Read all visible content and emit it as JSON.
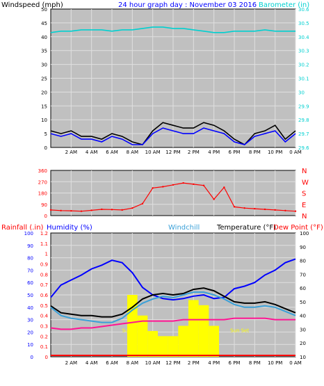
{
  "chart_data": [
    {
      "type": "line",
      "title": "24 hour graph day : November 03 2016",
      "ylabel": "Windspeed (mph)",
      "ylabel_right": "Barometer (in)",
      "x_ticks": [
        "2 AM",
        "4 AM",
        "6 AM",
        "8 AM",
        "10 AM",
        "12 PM",
        "2 PM",
        "4 PM",
        "6 PM",
        "8 PM",
        "10 PM",
        "0 AM"
      ],
      "ylim": [
        0,
        50
      ],
      "y_ticks": [
        "0",
        "5",
        "10",
        "15",
        "20",
        "25",
        "30",
        "35",
        "40",
        "45",
        "50"
      ],
      "ylim_right": [
        29.6,
        30.6
      ],
      "y_ticks_right": [
        "29.6",
        "29.7",
        "29.8",
        "29.9",
        "30",
        "30.1",
        "30.2",
        "30.3",
        "30.4",
        "30.5",
        "30.6"
      ],
      "grid": true,
      "series": [
        {
          "name": "Windspeed (mph)",
          "color": "#000000",
          "x": [
            0,
            1,
            2,
            3,
            4,
            5,
            6,
            7,
            8,
            9,
            10,
            11,
            12,
            13,
            14,
            15,
            16,
            17,
            18,
            19,
            20,
            21,
            22,
            23,
            24
          ],
          "values": [
            6,
            5,
            6,
            4,
            4,
            3,
            5,
            4,
            2,
            1,
            6,
            9,
            8,
            7,
            7,
            9,
            8,
            6,
            3,
            1,
            5,
            6,
            8,
            3,
            6
          ]
        },
        {
          "name": "Wind Gust",
          "color": "#0000ff",
          "x": [
            0,
            1,
            2,
            3,
            4,
            5,
            6,
            7,
            8,
            9,
            10,
            11,
            12,
            13,
            14,
            15,
            16,
            17,
            18,
            19,
            20,
            21,
            22,
            23,
            24
          ],
          "values": [
            5,
            4,
            5,
            3,
            3,
            2,
            4,
            3,
            1,
            1,
            5,
            7,
            6,
            5,
            5,
            7,
            6,
            5,
            2,
            1,
            4,
            5,
            6,
            2,
            5
          ]
        },
        {
          "name": "Barometer (in)",
          "color": "#00d0d0",
          "x": [
            0,
            1,
            2,
            3,
            4,
            5,
            6,
            7,
            8,
            9,
            10,
            11,
            12,
            13,
            14,
            15,
            16,
            17,
            18,
            19,
            20,
            21,
            22,
            23,
            24
          ],
          "values": [
            30.43,
            30.44,
            30.44,
            30.45,
            30.45,
            30.45,
            30.44,
            30.45,
            30.45,
            30.46,
            30.47,
            30.47,
            30.46,
            30.46,
            30.45,
            30.44,
            30.43,
            30.43,
            30.44,
            30.44,
            30.44,
            30.45,
            30.44,
            30.44,
            30.44
          ]
        }
      ]
    },
    {
      "type": "scatter",
      "title": "",
      "ylabel": "",
      "ylabel_right": "",
      "x_ticks": [],
      "ylim": [
        0,
        360
      ],
      "y_ticks": [
        "0",
        "90",
        "180",
        "270",
        "360"
      ],
      "right_labels": [
        "N",
        "W",
        "S",
        "E",
        "N"
      ],
      "grid": true,
      "series": [
        {
          "name": "Wind Direction",
          "color": "#ff0000",
          "x": [
            0,
            1,
            2,
            3,
            4,
            5,
            6,
            7,
            8,
            9,
            10,
            11,
            12,
            13,
            14,
            15,
            16,
            17,
            18,
            19,
            20,
            21,
            22,
            23,
            24
          ],
          "values": [
            45,
            40,
            38,
            35,
            42,
            50,
            48,
            45,
            60,
            95,
            220,
            230,
            245,
            260,
            250,
            240,
            130,
            225,
            70,
            60,
            55,
            50,
            45,
            40,
            35
          ]
        }
      ]
    },
    {
      "type": "line",
      "title": "",
      "labels": [
        "Rainfall (.in)",
        "Humidity (%)",
        "Windchill",
        "Temperature (°F)",
        "Dew Point (°F)"
      ],
      "ylim": [
        0,
        1.2
      ],
      "y_ticks": [
        "0",
        "0.1",
        "0.2",
        "0.3",
        "0.4",
        "0.5",
        "0.6",
        "0.7",
        "0.8",
        "0.9",
        "1",
        "1.1",
        "1.2"
      ],
      "ylim_humidity": [
        0,
        100
      ],
      "y_ticks_humidity": [
        "0",
        "10",
        "20",
        "30",
        "40",
        "50",
        "60",
        "70",
        "80",
        "90",
        "100"
      ],
      "ylim_right": [
        10,
        100
      ],
      "y_ticks_right": [
        "10",
        "20",
        "30",
        "40",
        "50",
        "60",
        "70",
        "80",
        "90",
        "100"
      ],
      "x_ticks": [
        "2 AM",
        "4 AM",
        "6 AM",
        "8 AM",
        "10 AM",
        "12 PM",
        "2 PM",
        "4 PM",
        "6 PM",
        "8 PM",
        "10 PM",
        "0 AM"
      ],
      "annotations": [
        "Sun Rise",
        "Sun Set"
      ],
      "grid": true,
      "series": [
        {
          "name": "Humidity (%)",
          "color": "#0000ff",
          "x": [
            0,
            1,
            2,
            3,
            4,
            5,
            6,
            7,
            8,
            9,
            10,
            11,
            12,
            13,
            14,
            15,
            16,
            17,
            18,
            19,
            20,
            21,
            22,
            23,
            24
          ],
          "values": [
            48,
            58,
            62,
            66,
            71,
            74,
            78,
            76,
            68,
            56,
            50,
            47,
            46,
            47,
            49,
            50,
            47,
            48,
            55,
            57,
            60,
            66,
            70,
            76,
            79
          ]
        },
        {
          "name": "Temperature (°F)",
          "color": "#000000",
          "x": [
            0,
            1,
            2,
            3,
            4,
            5,
            6,
            7,
            8,
            9,
            10,
            11,
            12,
            13,
            14,
            15,
            16,
            17,
            18,
            19,
            20,
            21,
            22,
            23,
            24
          ],
          "values": [
            47,
            42,
            41,
            40,
            40,
            39,
            39,
            41,
            46,
            52,
            55,
            56,
            55,
            56,
            59,
            60,
            58,
            54,
            50,
            49,
            49,
            50,
            48,
            45,
            42
          ]
        },
        {
          "name": "Windchill",
          "color": "#3aa0d8",
          "x": [
            0,
            1,
            2,
            3,
            4,
            5,
            6,
            7,
            8,
            9,
            10,
            11,
            12,
            13,
            14,
            15,
            16,
            17,
            18,
            19,
            20,
            21,
            22,
            23,
            24
          ],
          "values": [
            46,
            40,
            38,
            37,
            36,
            35,
            35,
            38,
            44,
            49,
            52,
            54,
            53,
            55,
            57,
            57,
            55,
            52,
            48,
            46,
            46,
            47,
            46,
            43,
            40
          ]
        },
        {
          "name": "Dew Point (°F)",
          "color": "#ff1493",
          "x": [
            0,
            1,
            2,
            3,
            4,
            5,
            6,
            7,
            8,
            9,
            10,
            11,
            12,
            13,
            14,
            15,
            16,
            17,
            18,
            19,
            20,
            21,
            22,
            23,
            24
          ],
          "values": [
            31,
            30,
            30,
            31,
            31,
            32,
            33,
            34,
            35,
            36,
            36,
            36,
            36,
            37,
            37,
            37,
            37,
            37,
            38,
            38,
            38,
            38,
            37,
            37,
            37
          ]
        },
        {
          "name": "Rainfall (.in)",
          "color": "#ffff00",
          "x": [
            0,
            1,
            2,
            3,
            4,
            5,
            6,
            7,
            8,
            9,
            10,
            11,
            12,
            13,
            14,
            15,
            16,
            17,
            18,
            19,
            20,
            21,
            22,
            23,
            24
          ],
          "values": [
            0,
            0,
            0,
            0,
            0,
            0,
            0,
            0,
            0.6,
            0.4,
            0.25,
            0.2,
            0.2,
            0.3,
            0.55,
            0.5,
            0.3,
            0,
            0,
            0,
            0,
            0,
            0,
            0,
            0
          ]
        }
      ]
    }
  ]
}
